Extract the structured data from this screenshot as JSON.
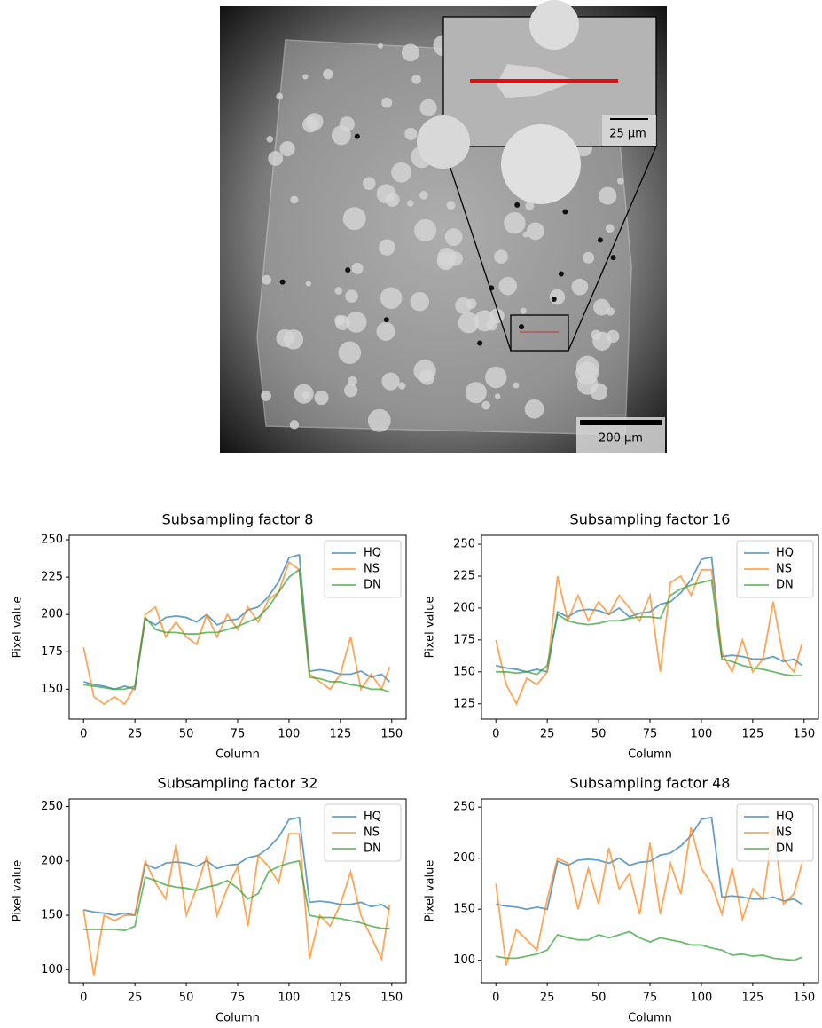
{
  "image": {
    "scale_bar": "200 µm",
    "inset_scale_bar": "25 µm"
  },
  "chart_data": [
    {
      "type": "line",
      "title": "Subsampling factor 8",
      "xlabel": "Column",
      "ylabel": "Pixel value",
      "x": [
        0,
        5,
        10,
        15,
        20,
        25,
        30,
        35,
        40,
        45,
        50,
        55,
        60,
        65,
        70,
        75,
        80,
        85,
        90,
        95,
        100,
        105,
        110,
        115,
        120,
        125,
        130,
        135,
        140,
        145,
        149
      ],
      "xlim": [
        -7,
        157
      ],
      "xticks": [
        0,
        25,
        50,
        75,
        100,
        125,
        150
      ],
      "ylim": [
        130,
        253
      ],
      "yticks": [
        150,
        175,
        200,
        225,
        250
      ],
      "legend": "upper right",
      "series": [
        {
          "name": "HQ",
          "color": "#1f77b4",
          "values": [
            155,
            153,
            152,
            150,
            152,
            150,
            197,
            193,
            198,
            199,
            198,
            195,
            200,
            193,
            196,
            197,
            203,
            205,
            212,
            222,
            238,
            240,
            162,
            163,
            162,
            160,
            160,
            162,
            158,
            160,
            155
          ]
        },
        {
          "name": "NS",
          "color": "#ff7f0e",
          "values": [
            178,
            145,
            140,
            145,
            140,
            152,
            200,
            205,
            185,
            195,
            185,
            180,
            200,
            185,
            200,
            190,
            205,
            195,
            210,
            215,
            235,
            230,
            160,
            155,
            150,
            160,
            185,
            150,
            160,
            150,
            165
          ]
        },
        {
          "name": "DN",
          "color": "#2ca02c",
          "values": [
            153,
            152,
            151,
            150,
            150,
            152,
            198,
            190,
            188,
            188,
            187,
            187,
            188,
            188,
            190,
            192,
            195,
            198,
            205,
            215,
            225,
            230,
            158,
            157,
            155,
            155,
            153,
            152,
            150,
            150,
            148
          ]
        }
      ]
    },
    {
      "type": "line",
      "title": "Subsampling factor 16",
      "xlabel": "Column",
      "ylabel": "Pixel value",
      "x": [
        0,
        5,
        10,
        15,
        20,
        25,
        30,
        35,
        40,
        45,
        50,
        55,
        60,
        65,
        70,
        75,
        80,
        85,
        90,
        95,
        100,
        105,
        110,
        115,
        120,
        125,
        130,
        135,
        140,
        145,
        149
      ],
      "xlim": [
        -7,
        157
      ],
      "xticks": [
        0,
        25,
        50,
        75,
        100,
        125,
        150
      ],
      "ylim": [
        113,
        257
      ],
      "yticks": [
        125,
        150,
        175,
        200,
        225,
        250
      ],
      "legend": "upper right",
      "series": [
        {
          "name": "HQ",
          "color": "#1f77b4",
          "values": [
            155,
            153,
            152,
            150,
            152,
            150,
            197,
            193,
            198,
            199,
            198,
            195,
            200,
            193,
            196,
            197,
            203,
            205,
            212,
            222,
            238,
            240,
            162,
            163,
            162,
            160,
            160,
            162,
            158,
            160,
            155
          ]
        },
        {
          "name": "NS",
          "color": "#ff7f0e",
          "values": [
            175,
            140,
            125,
            145,
            140,
            150,
            225,
            190,
            210,
            190,
            205,
            195,
            210,
            200,
            190,
            210,
            150,
            220,
            225,
            210,
            230,
            230,
            165,
            150,
            175,
            150,
            160,
            205,
            160,
            150,
            172
          ]
        },
        {
          "name": "DN",
          "color": "#2ca02c",
          "values": [
            150,
            150,
            149,
            150,
            148,
            155,
            195,
            190,
            188,
            187,
            188,
            190,
            190,
            192,
            193,
            193,
            192,
            210,
            215,
            218,
            220,
            222,
            160,
            158,
            155,
            153,
            152,
            150,
            148,
            147,
            147
          ]
        }
      ]
    },
    {
      "type": "line",
      "title": "Subsampling factor 32",
      "xlabel": "Column",
      "ylabel": "Pixel value",
      "x": [
        0,
        5,
        10,
        15,
        20,
        25,
        30,
        35,
        40,
        45,
        50,
        55,
        60,
        65,
        70,
        75,
        80,
        85,
        90,
        95,
        100,
        105,
        110,
        115,
        120,
        125,
        130,
        135,
        140,
        145,
        149
      ],
      "xlim": [
        -7,
        157
      ],
      "xticks": [
        0,
        25,
        50,
        75,
        100,
        125,
        150
      ],
      "ylim": [
        88,
        257
      ],
      "yticks": [
        100,
        150,
        200,
        250
      ],
      "legend": "upper right",
      "series": [
        {
          "name": "HQ",
          "color": "#1f77b4",
          "values": [
            155,
            153,
            152,
            150,
            152,
            150,
            197,
            193,
            198,
            199,
            198,
            195,
            200,
            193,
            196,
            197,
            203,
            205,
            212,
            222,
            238,
            240,
            162,
            163,
            162,
            160,
            160,
            162,
            158,
            160,
            155
          ]
        },
        {
          "name": "NS",
          "color": "#ff7f0e",
          "values": [
            155,
            95,
            150,
            145,
            150,
            150,
            200,
            180,
            165,
            215,
            150,
            175,
            205,
            150,
            175,
            195,
            140,
            205,
            195,
            180,
            225,
            225,
            110,
            150,
            140,
            160,
            190,
            150,
            130,
            110,
            160
          ]
        },
        {
          "name": "DN",
          "color": "#2ca02c",
          "values": [
            137,
            137,
            137,
            137,
            136,
            140,
            185,
            182,
            178,
            176,
            175,
            173,
            176,
            178,
            182,
            175,
            165,
            170,
            190,
            195,
            198,
            200,
            150,
            148,
            148,
            147,
            145,
            143,
            140,
            138,
            138
          ]
        }
      ]
    },
    {
      "type": "line",
      "title": "Subsampling factor 48",
      "xlabel": "Column",
      "ylabel": "Pixel value",
      "x": [
        0,
        5,
        10,
        15,
        20,
        25,
        30,
        35,
        40,
        45,
        50,
        55,
        60,
        65,
        70,
        75,
        80,
        85,
        90,
        95,
        100,
        105,
        110,
        115,
        120,
        125,
        130,
        135,
        140,
        145,
        149
      ],
      "xlim": [
        -7,
        157
      ],
      "xticks": [
        0,
        25,
        50,
        75,
        100,
        125,
        150
      ],
      "ylim": [
        78,
        258
      ],
      "yticks": [
        100,
        150,
        200,
        250
      ],
      "legend": "upper right",
      "series": [
        {
          "name": "HQ",
          "color": "#1f77b4",
          "values": [
            155,
            153,
            152,
            150,
            152,
            150,
            197,
            193,
            198,
            199,
            198,
            195,
            200,
            193,
            196,
            197,
            203,
            205,
            212,
            222,
            238,
            240,
            162,
            163,
            162,
            160,
            160,
            162,
            158,
            160,
            155
          ]
        },
        {
          "name": "NS",
          "color": "#ff7f0e",
          "values": [
            175,
            95,
            130,
            120,
            110,
            160,
            200,
            195,
            150,
            190,
            155,
            210,
            170,
            185,
            145,
            215,
            145,
            195,
            165,
            230,
            190,
            175,
            145,
            190,
            140,
            170,
            160,
            230,
            155,
            165,
            195
          ]
        },
        {
          "name": "DN",
          "color": "#2ca02c",
          "values": [
            104,
            102,
            102,
            104,
            106,
            110,
            125,
            122,
            120,
            120,
            125,
            122,
            125,
            128,
            122,
            118,
            122,
            120,
            118,
            115,
            115,
            112,
            110,
            105,
            106,
            104,
            105,
            102,
            101,
            100,
            103
          ]
        }
      ]
    }
  ]
}
